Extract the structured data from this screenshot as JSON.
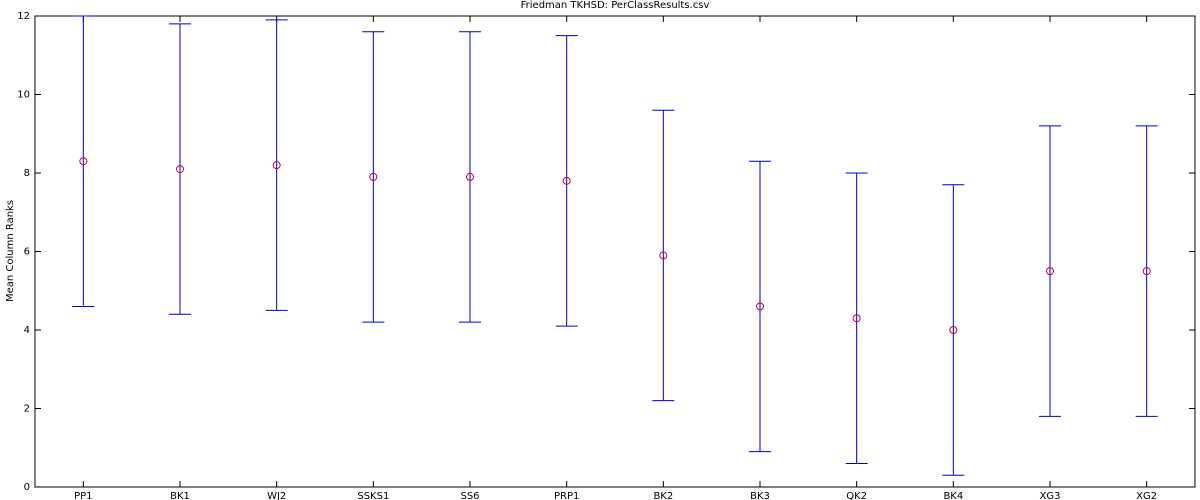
{
  "chart_data": {
    "type": "errorbar",
    "title": "Friedman TKHSD: PerClassResults.csv",
    "y_label": "Mean Column Ranks",
    "categories": [
      "PP1",
      "BK1",
      "WJ2",
      "SSKS1",
      "SS6",
      "PRP1",
      "BK2",
      "BK3",
      "QK2",
      "BK4",
      "XG3",
      "XG2"
    ],
    "values": [
      8.3,
      8.1,
      8.2,
      7.9,
      7.9,
      7.8,
      5.9,
      4.6,
      4.3,
      4.0,
      5.5,
      5.5
    ],
    "lower": [
      4.6,
      4.4,
      4.5,
      4.2,
      4.2,
      4.1,
      2.2,
      0.9,
      0.6,
      0.3,
      1.8,
      1.8
    ],
    "upper": [
      12.0,
      11.8,
      11.9,
      11.6,
      11.6,
      11.5,
      9.6,
      8.3,
      8.0,
      7.7,
      9.2,
      9.2
    ],
    "marker_color": "#cc0033",
    "bar_color": "#0000cc",
    "ylim": [
      0,
      12
    ],
    "yticks": [
      0,
      2,
      4,
      6,
      8,
      10,
      12
    ]
  }
}
